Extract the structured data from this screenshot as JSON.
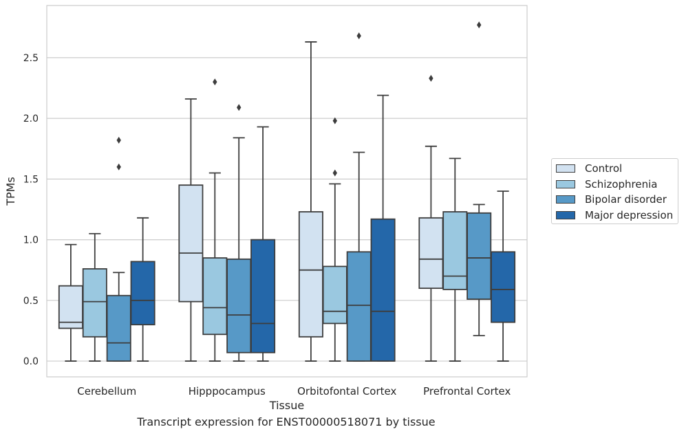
{
  "caption": "Transcript expression for ENST00000518071 by tissue",
  "chart_data": {
    "type": "box",
    "title": "",
    "xlabel": "Tissue",
    "ylabel": "TPMs",
    "ylim": [
      -0.13,
      2.93
    ],
    "yticks": [
      0.0,
      0.5,
      1.0,
      1.5,
      2.0,
      2.5
    ],
    "ytick_labels": [
      "0.0",
      "0.5",
      "1.0",
      "1.5",
      "2.0",
      "2.5"
    ],
    "grid": "horizontal",
    "legend_position": "outside-right",
    "categories": [
      "Cerebellum",
      "Hipppocampus",
      "Orbitofontal Cortex",
      "Prefrontal Cortex"
    ],
    "series": [
      {
        "name": "Control",
        "color": "#d2e2f1",
        "boxes": [
          {
            "whislo": 0.0,
            "q1": 0.27,
            "med": 0.32,
            "q3": 0.62,
            "whishi": 0.96,
            "fliers": []
          },
          {
            "whislo": 0.0,
            "q1": 0.49,
            "med": 0.89,
            "q3": 1.45,
            "whishi": 2.16,
            "fliers": []
          },
          {
            "whislo": 0.0,
            "q1": 0.2,
            "med": 0.75,
            "q3": 1.23,
            "whishi": 2.63,
            "fliers": []
          },
          {
            "whislo": 0.0,
            "q1": 0.6,
            "med": 0.84,
            "q3": 1.18,
            "whishi": 1.77,
            "fliers": [
              2.33
            ]
          }
        ]
      },
      {
        "name": "Schizophrenia",
        "color": "#9ac8e0",
        "boxes": [
          {
            "whislo": 0.0,
            "q1": 0.2,
            "med": 0.49,
            "q3": 0.76,
            "whishi": 1.05,
            "fliers": []
          },
          {
            "whislo": 0.0,
            "q1": 0.22,
            "med": 0.44,
            "q3": 0.85,
            "whishi": 1.55,
            "fliers": [
              2.3
            ]
          },
          {
            "whislo": 0.0,
            "q1": 0.31,
            "med": 0.41,
            "q3": 0.78,
            "whishi": 1.46,
            "fliers": [
              1.55,
              1.98
            ]
          },
          {
            "whislo": 0.0,
            "q1": 0.59,
            "med": 0.7,
            "q3": 1.23,
            "whishi": 1.67,
            "fliers": []
          }
        ]
      },
      {
        "name": "Bipolar disorder",
        "color": "#5799c7",
        "boxes": [
          {
            "whislo": 0.0,
            "q1": 0.0,
            "med": 0.15,
            "q3": 0.54,
            "whishi": 0.73,
            "fliers": [
              1.6,
              1.82
            ]
          },
          {
            "whislo": 0.0,
            "q1": 0.07,
            "med": 0.38,
            "q3": 0.84,
            "whishi": 1.84,
            "fliers": [
              2.09
            ]
          },
          {
            "whislo": 0.0,
            "q1": 0.0,
            "med": 0.46,
            "q3": 0.9,
            "whishi": 1.72,
            "fliers": [
              2.68
            ]
          },
          {
            "whislo": 0.21,
            "q1": 0.51,
            "med": 0.85,
            "q3": 1.22,
            "whishi": 1.29,
            "fliers": [
              2.77
            ]
          }
        ]
      },
      {
        "name": "Major depression",
        "color": "#2467a9",
        "boxes": [
          {
            "whislo": 0.0,
            "q1": 0.3,
            "med": 0.5,
            "q3": 0.82,
            "whishi": 1.18,
            "fliers": []
          },
          {
            "whislo": 0.0,
            "q1": 0.07,
            "med": 0.31,
            "q3": 1.0,
            "whishi": 1.93,
            "fliers": []
          },
          {
            "whislo": 0.0,
            "q1": 0.0,
            "med": 0.41,
            "q3": 1.17,
            "whishi": 2.19,
            "fliers": []
          },
          {
            "whislo": 0.0,
            "q1": 0.32,
            "med": 0.59,
            "q3": 0.9,
            "whishi": 1.4,
            "fliers": []
          }
        ]
      }
    ]
  }
}
